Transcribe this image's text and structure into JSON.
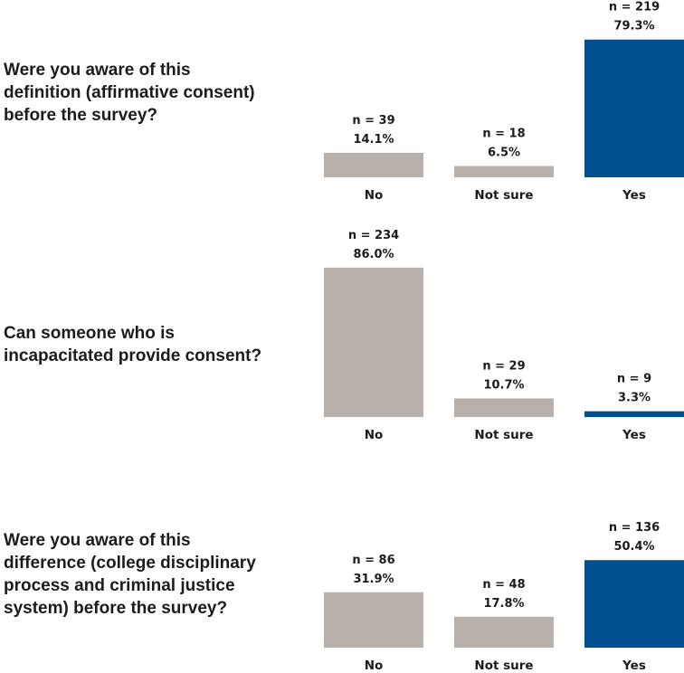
{
  "chart_data": [
    {
      "type": "bar",
      "title": "Were you aware of this\ndefinition (affirmative consent)\nbefore the survey?",
      "categories": [
        "No",
        "Not sure",
        "Yes"
      ],
      "values": [
        14.1,
        6.5,
        79.3
      ],
      "value_labels": [
        "14.1%",
        "6.5%",
        "79.3%"
      ],
      "n_labels": [
        "n = 39",
        "n = 18",
        "n = 219"
      ],
      "colors": [
        "#b8b0ab",
        "#b8b0ab",
        "#00508f"
      ]
    },
    {
      "type": "bar",
      "title": "Can someone who is\nincapacitated provide consent?",
      "categories": [
        "No",
        "Not sure",
        "Yes"
      ],
      "values": [
        86.0,
        10.7,
        3.3
      ],
      "value_labels": [
        "86.0%",
        "10.7%",
        "3.3%"
      ],
      "n_labels": [
        "n = 234",
        "n = 29",
        "n = 9"
      ],
      "colors": [
        "#b8b0ab",
        "#b8b0ab",
        "#00508f"
      ]
    },
    {
      "type": "bar",
      "title": "Were you aware of this\ndifference (college disciplinary\nprocess and criminal justice\nsystem) before the survey?",
      "categories": [
        "No",
        "Not sure",
        "Yes"
      ],
      "values": [
        31.9,
        17.8,
        50.4
      ],
      "value_labels": [
        "31.9%",
        "17.8%",
        "50.4%"
      ],
      "n_labels": [
        "n = 86",
        "n = 48",
        "n = 136"
      ],
      "colors": [
        "#b8b0ab",
        "#b8b0ab",
        "#00508f"
      ]
    }
  ]
}
